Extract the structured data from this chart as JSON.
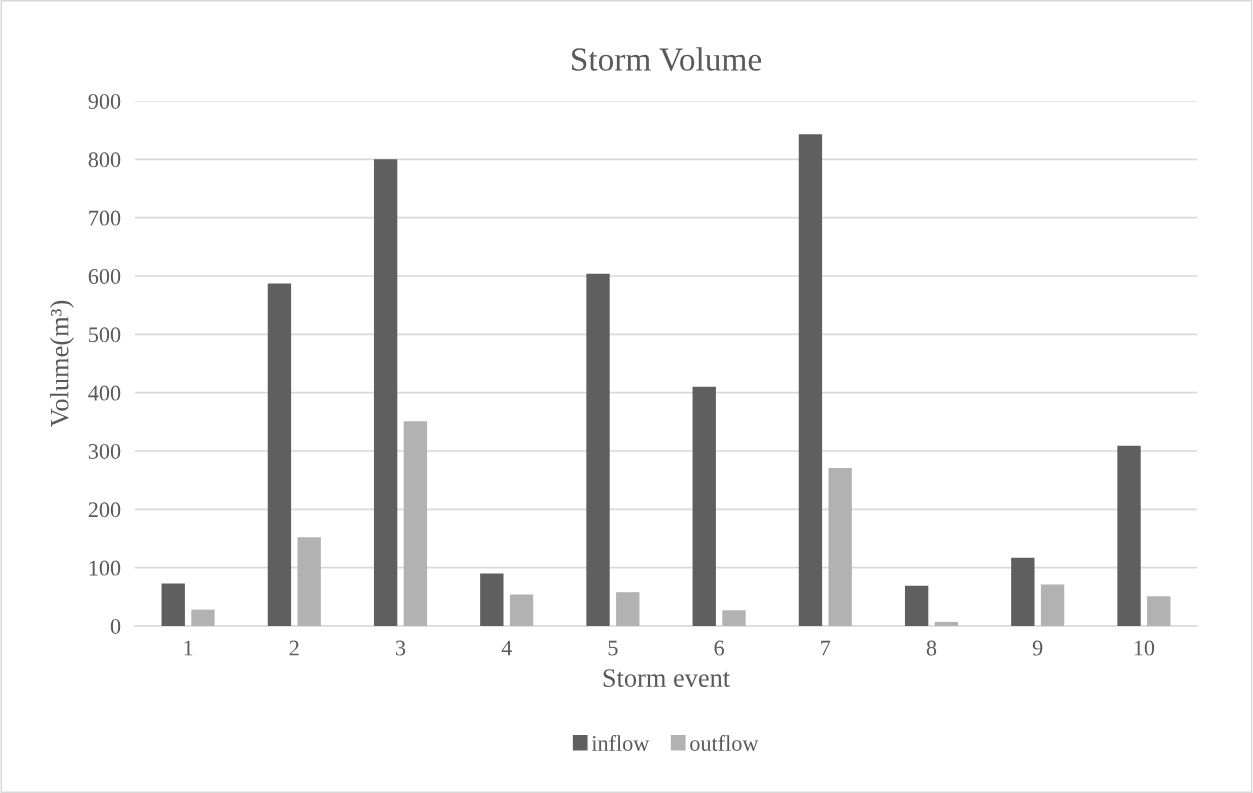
{
  "chart_data": {
    "type": "bar",
    "title": "Storm Volume",
    "xlabel": "Storm event",
    "ylabel": "Volume(m³)",
    "categories": [
      "1",
      "2",
      "3",
      "4",
      "5",
      "6",
      "7",
      "8",
      "9",
      "10"
    ],
    "series": [
      {
        "name": "inflow",
        "color": "#5f5f5f",
        "values": [
          73,
          587,
          800,
          90,
          604,
          410,
          843,
          69,
          117,
          309
        ]
      },
      {
        "name": "outflow",
        "color": "#b2b2b2",
        "values": [
          28,
          152,
          351,
          54,
          58,
          27,
          271,
          7,
          71,
          51
        ]
      }
    ],
    "ylim": [
      0,
      900
    ],
    "yticks": [
      0,
      100,
      200,
      300,
      400,
      500,
      600,
      700,
      800,
      900
    ],
    "grid": "y",
    "legend": "bottom"
  }
}
